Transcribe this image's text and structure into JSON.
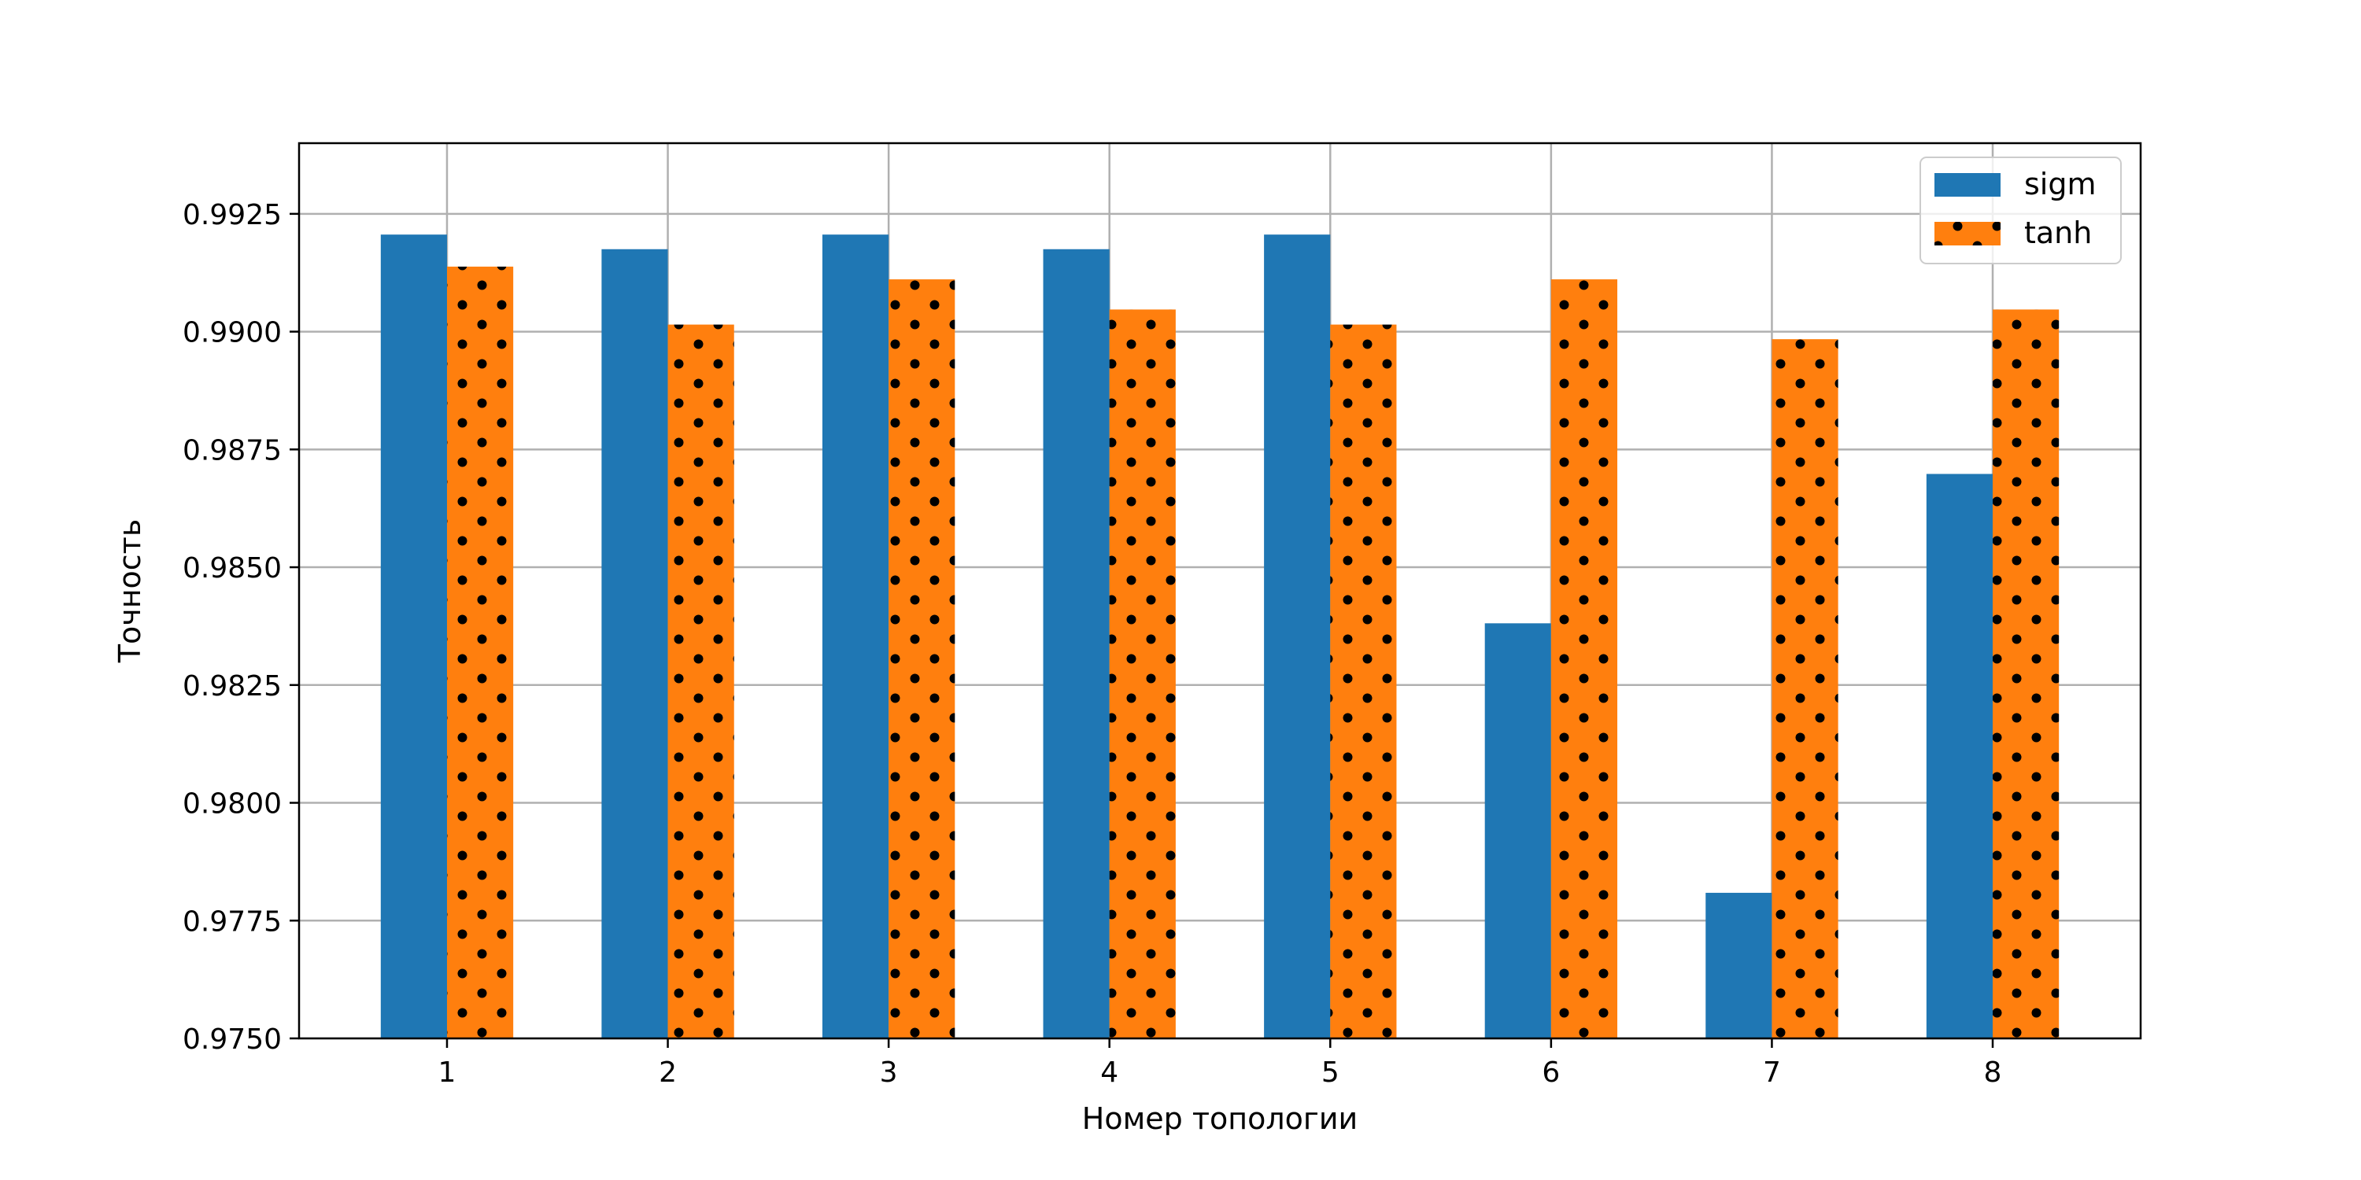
{
  "chart_data": {
    "type": "bar",
    "categories": [
      "1",
      "2",
      "3",
      "4",
      "5",
      "6",
      "7",
      "8"
    ],
    "series": [
      {
        "name": "sigm",
        "color": "#1f77b4",
        "pattern": "solid",
        "values": [
          0.99206,
          0.99175,
          0.99206,
          0.99175,
          0.99206,
          0.98381,
          0.97809,
          0.98698
        ]
      },
      {
        "name": "tanh",
        "color": "#ff7f0e",
        "pattern": "dots",
        "values": [
          0.99138,
          0.99015,
          0.99111,
          0.99047,
          0.99015,
          0.99111,
          0.98984,
          0.99047
        ]
      }
    ],
    "xlabel": "Номер топологии",
    "ylabel": "Точность",
    "ylim": [
      0.975,
      0.994
    ],
    "yticks": [
      0.975,
      0.9775,
      0.98,
      0.9825,
      0.985,
      0.9875,
      0.99,
      0.9925
    ],
    "ytick_labels": [
      "0.9750",
      "0.9775",
      "0.9800",
      "0.9825",
      "0.9850",
      "0.9875",
      "0.9900",
      "0.9925"
    ],
    "grid": true,
    "legend_position": "top-right"
  }
}
